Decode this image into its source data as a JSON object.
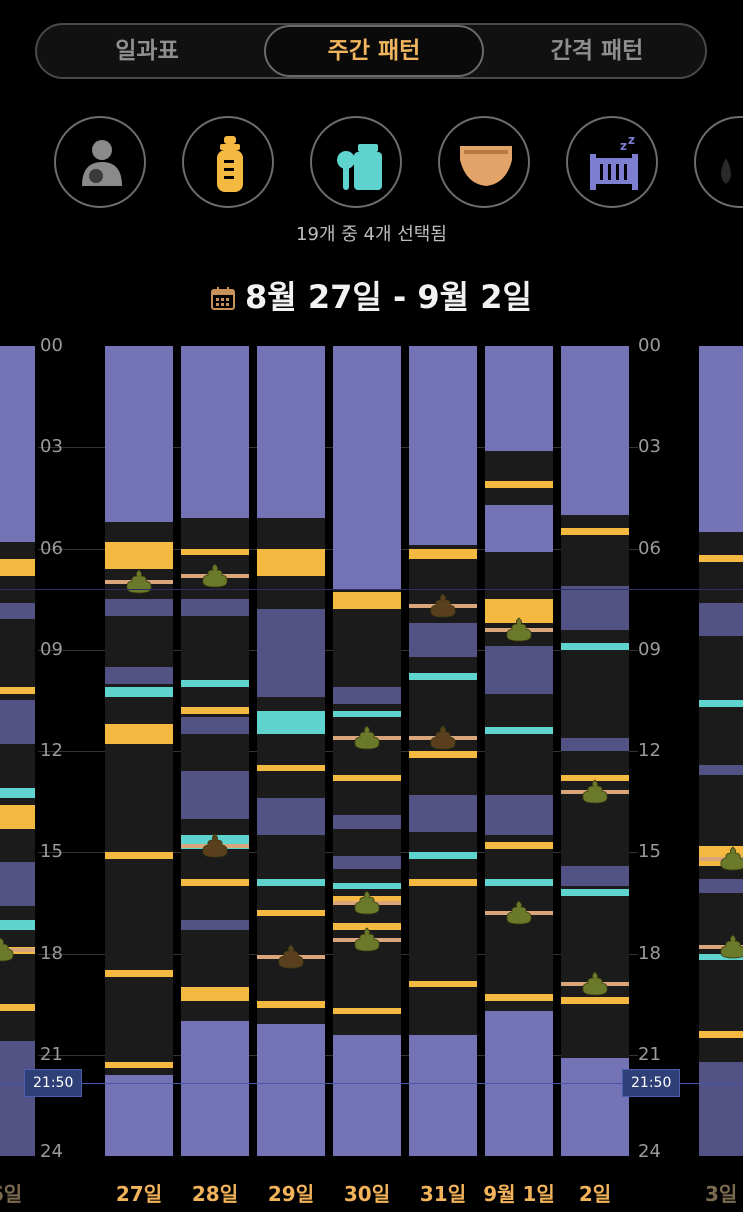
{
  "tabs": [
    {
      "label": "일과표",
      "active": false
    },
    {
      "label": "주간 패턴",
      "active": true
    },
    {
      "label": "간격 패턴",
      "active": false
    }
  ],
  "filters": [
    {
      "icon": "breastfeeding-icon",
      "color": "#8a8a8a",
      "selected": false
    },
    {
      "icon": "bottle-icon",
      "color": "#f5b942",
      "selected": true
    },
    {
      "icon": "baby-food-icon",
      "color": "#5fd3cd",
      "selected": true
    },
    {
      "icon": "diaper-icon",
      "color": "#e3a46a",
      "selected": true
    },
    {
      "icon": "crib-sleep-icon",
      "color": "#7e7ed0",
      "selected": true
    },
    {
      "icon": "more-icon",
      "color": "#444",
      "selected": false
    }
  ],
  "selected_text": "19개 중 4개 선택됨",
  "date_range": "8월 27일 - 9월 2일",
  "y_labels": [
    "00",
    "03",
    "06",
    "09",
    "12",
    "15",
    "18",
    "21",
    "24"
  ],
  "now_time": "21:50",
  "x_labels": [
    "6일",
    "27일",
    "28일",
    "29일",
    "30일",
    "31일",
    "9월 1일",
    "2일",
    "3일"
  ],
  "colors": {
    "sleep": "#7373b5",
    "sleep_dim": "#525284",
    "bottle": "#f5b942",
    "food": "#5fd3cd",
    "diaper_line": "#d9a57a",
    "poop": "#6b7a2a",
    "poop_dark": "#5a3f1f",
    "col_bg": "#1b1b1b"
  }
}
